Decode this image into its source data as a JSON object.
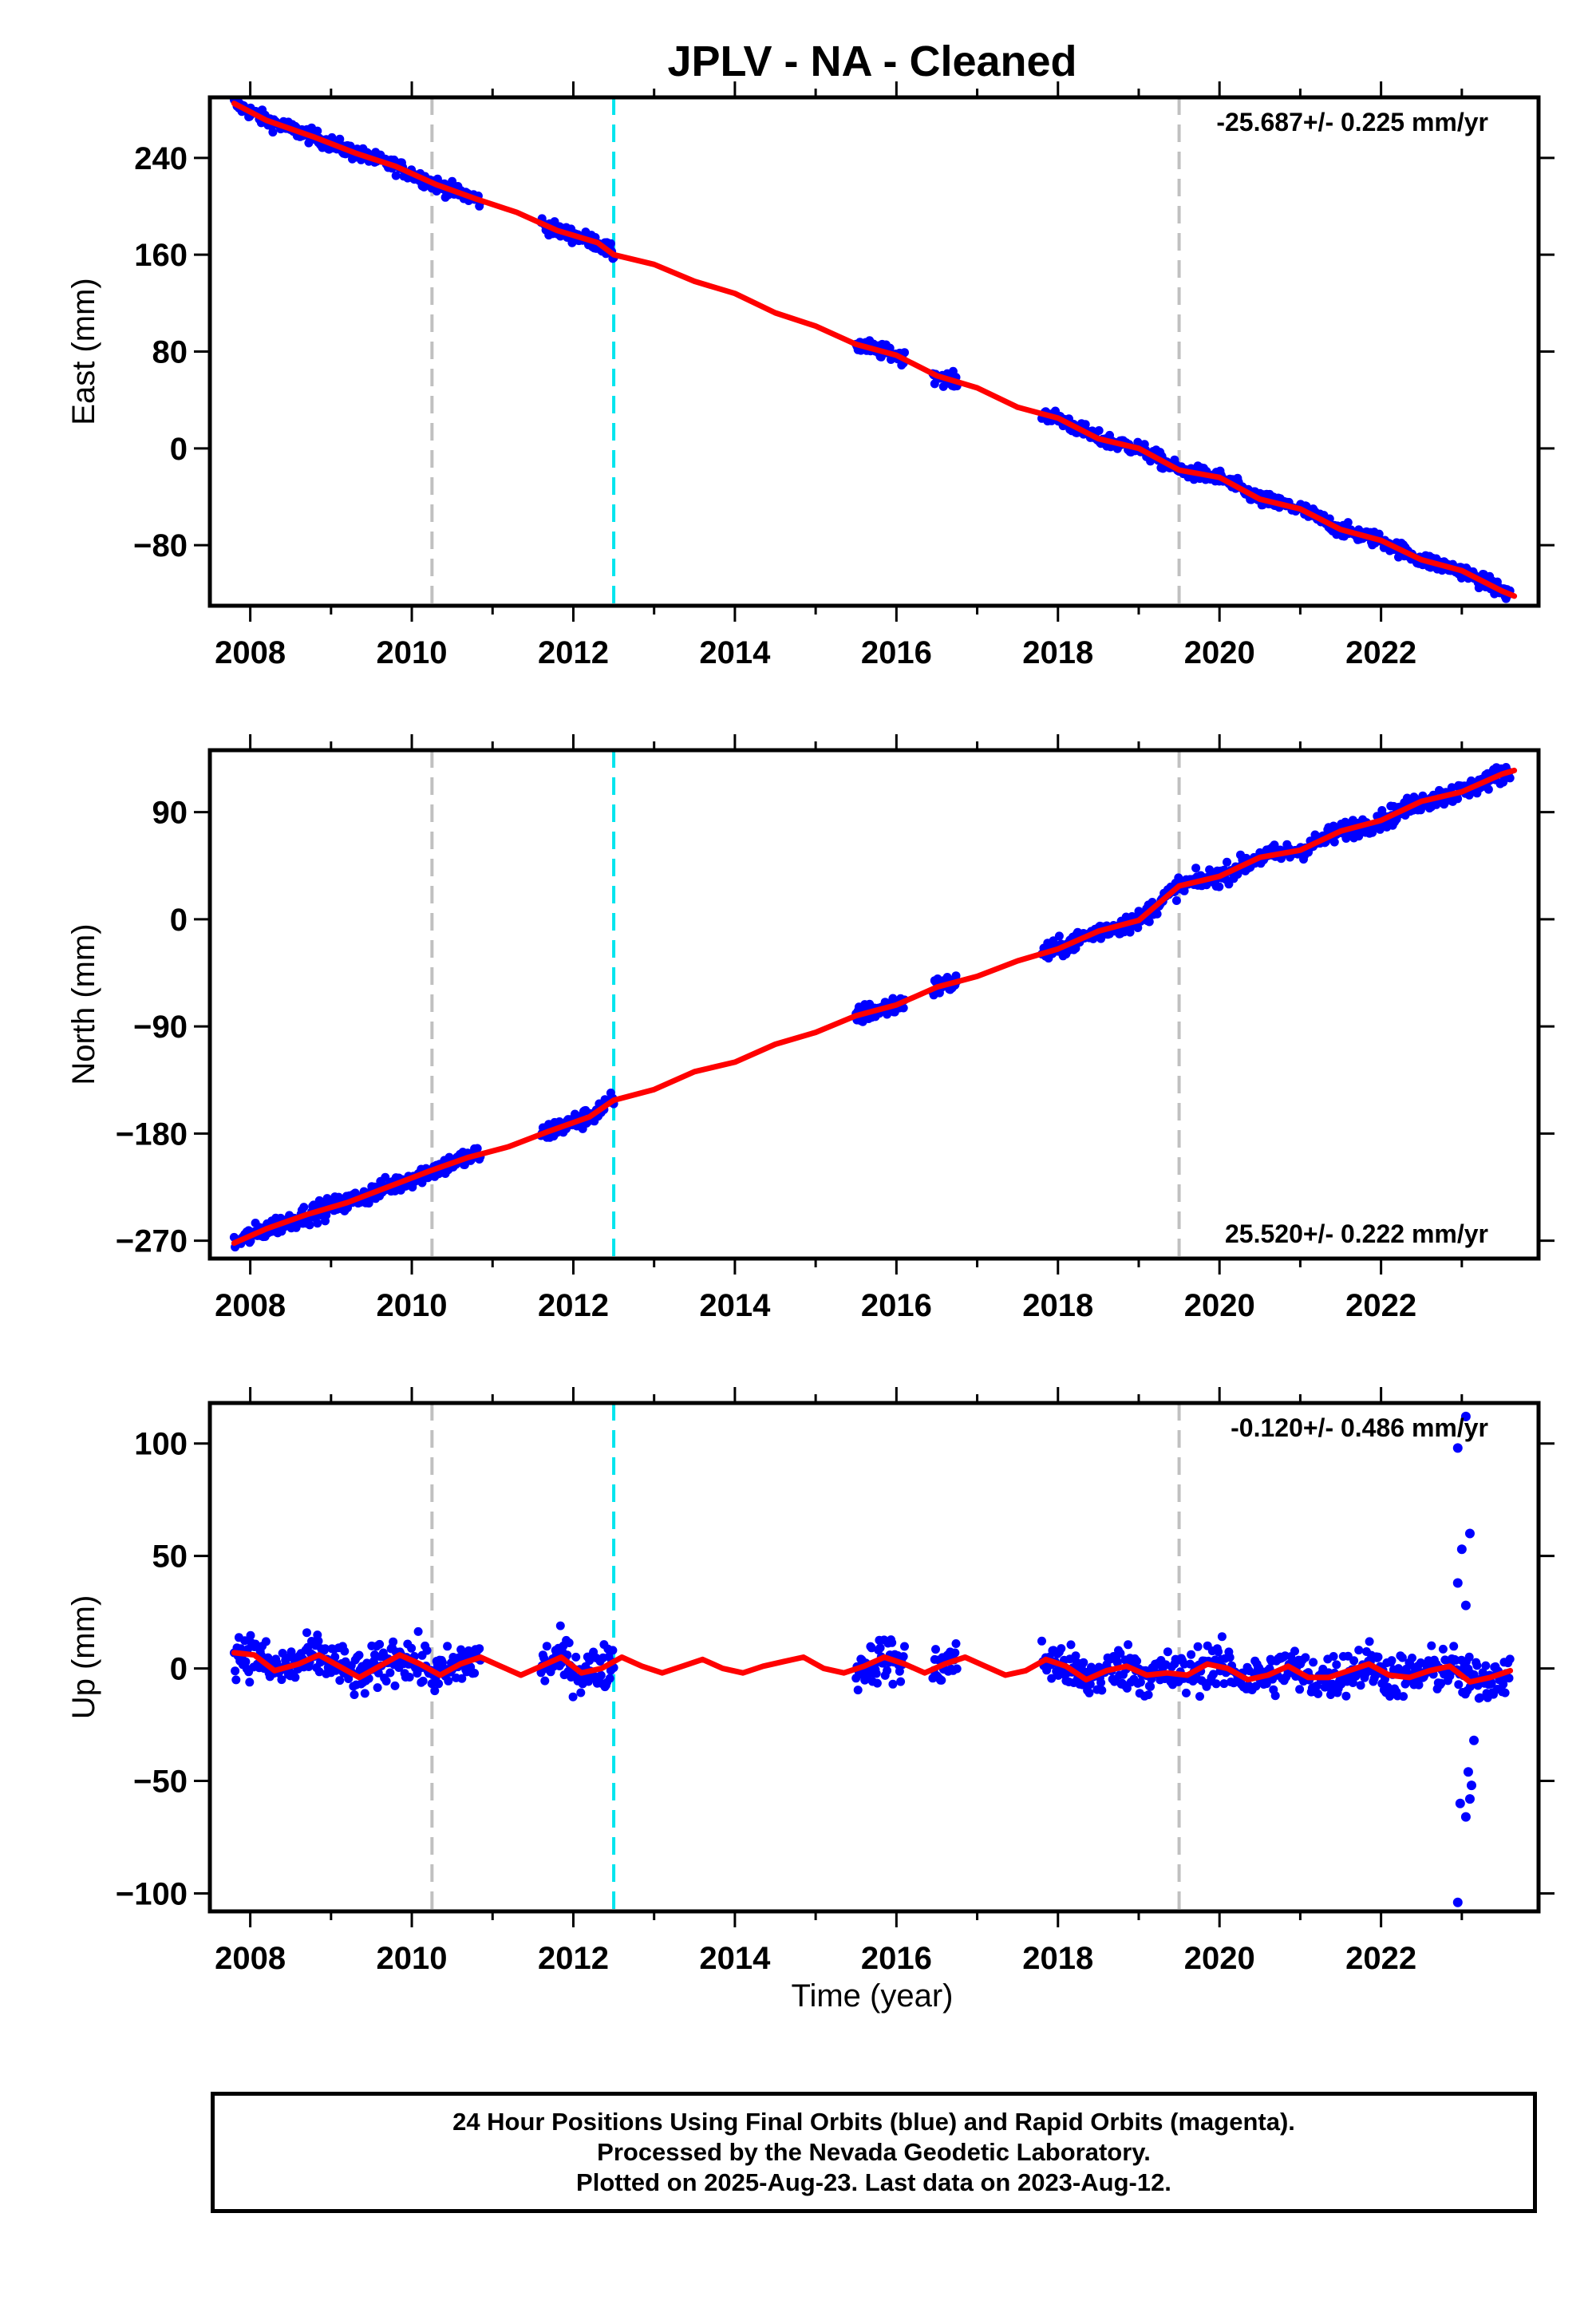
{
  "title": "JPLV  - NA - Cleaned",
  "xlabel": "Time (year)",
  "footer": {
    "line1": "24 Hour Positions Using Final Orbits (blue) and Rapid Orbits (magenta).",
    "line2": "Processed by the Nevada Geodetic Laboratory.",
    "line3": "Plotted on 2025-Aug-23. Last data on 2023-Aug-12."
  },
  "colors": {
    "data": "#0000ff",
    "model": "#ff0000",
    "equipment_change": "#c0c0c0",
    "earthquake": "#00e5ee"
  },
  "chart_data": [
    {
      "type": "scatter",
      "component": "east",
      "ylabel": "East (mm)",
      "rate_text": "-25.687+/- 0.225 mm/yr",
      "xlim": [
        2007.5,
        2023.95
      ],
      "ylim": [
        -130,
        290
      ],
      "yticks": [
        -80,
        0,
        80,
        160,
        240
      ],
      "xticks": [
        2008,
        2010,
        2012,
        2014,
        2016,
        2018,
        2020,
        2022
      ],
      "gray_lines": [
        2010.25,
        2019.5
      ],
      "cyan_lines": [
        2012.5
      ],
      "data_segments": [
        [
          2007.8,
          2010.85
        ],
        [
          2011.6,
          2012.5
        ],
        [
          2015.5,
          2016.1
        ],
        [
          2016.45,
          2016.75
        ],
        [
          2017.8,
          2023.6
        ]
      ],
      "model_points": [
        [
          2007.8,
          285
        ],
        [
          2008.2,
          271
        ],
        [
          2008.8,
          257
        ],
        [
          2009.3,
          244
        ],
        [
          2009.8,
          233
        ],
        [
          2010.3,
          218
        ],
        [
          2010.8,
          206
        ],
        [
          2011.3,
          195
        ],
        [
          2011.8,
          180
        ],
        [
          2012.3,
          170
        ],
        [
          2012.5,
          160
        ],
        [
          2013.0,
          152
        ],
        [
          2013.5,
          138
        ],
        [
          2014.0,
          128
        ],
        [
          2014.5,
          112
        ],
        [
          2015.0,
          101
        ],
        [
          2015.5,
          86
        ],
        [
          2016.0,
          77
        ],
        [
          2016.5,
          60
        ],
        [
          2017.0,
          50
        ],
        [
          2017.5,
          34
        ],
        [
          2018.0,
          25
        ],
        [
          2018.5,
          8
        ],
        [
          2019.0,
          0
        ],
        [
          2019.5,
          -18
        ],
        [
          2020.0,
          -24
        ],
        [
          2020.5,
          -42
        ],
        [
          2021.0,
          -50
        ],
        [
          2021.5,
          -67
        ],
        [
          2022.0,
          -76
        ],
        [
          2022.5,
          -92
        ],
        [
          2023.0,
          -101
        ],
        [
          2023.5,
          -118
        ],
        [
          2023.65,
          -122
        ]
      ]
    },
    {
      "type": "scatter",
      "component": "north",
      "ylabel": "North (mm)",
      "rate_text": "25.520+/- 0.222 mm/yr",
      "xlim": [
        2007.5,
        2023.95
      ],
      "ylim": [
        -285,
        142
      ],
      "yticks": [
        -270,
        -180,
        -90,
        0,
        90
      ],
      "xticks": [
        2008,
        2010,
        2012,
        2014,
        2016,
        2018,
        2020,
        2022
      ],
      "gray_lines": [
        2010.25,
        2019.5
      ],
      "cyan_lines": [
        2012.5
      ],
      "data_segments": [
        [
          2007.8,
          2010.85
        ],
        [
          2011.6,
          2012.5
        ],
        [
          2015.5,
          2016.1
        ],
        [
          2016.45,
          2016.75
        ],
        [
          2017.8,
          2023.6
        ]
      ],
      "model_points": [
        [
          2007.8,
          -272
        ],
        [
          2008.2,
          -260
        ],
        [
          2008.7,
          -248
        ],
        [
          2009.2,
          -238
        ],
        [
          2009.7,
          -225
        ],
        [
          2010.2,
          -212
        ],
        [
          2010.7,
          -200
        ],
        [
          2011.2,
          -191
        ],
        [
          2011.7,
          -178
        ],
        [
          2012.2,
          -166
        ],
        [
          2012.5,
          -152
        ],
        [
          2013.0,
          -143
        ],
        [
          2013.5,
          -128
        ],
        [
          2014.0,
          -120
        ],
        [
          2014.5,
          -105
        ],
        [
          2015.0,
          -95
        ],
        [
          2015.5,
          -81
        ],
        [
          2016.0,
          -72
        ],
        [
          2016.5,
          -57
        ],
        [
          2017.0,
          -48
        ],
        [
          2017.5,
          -35
        ],
        [
          2018.0,
          -25
        ],
        [
          2018.5,
          -10
        ],
        [
          2019.0,
          -1
        ],
        [
          2019.5,
          28
        ],
        [
          2020.0,
          36
        ],
        [
          2020.5,
          52
        ],
        [
          2021.0,
          58
        ],
        [
          2021.5,
          74
        ],
        [
          2022.0,
          83
        ],
        [
          2022.5,
          99
        ],
        [
          2023.0,
          107
        ],
        [
          2023.5,
          122
        ],
        [
          2023.65,
          125
        ]
      ]
    },
    {
      "type": "scatter",
      "component": "up",
      "ylabel": "Up (mm)",
      "rate_text": "-0.120+/- 0.486 mm/yr",
      "xlim": [
        2007.5,
        2023.95
      ],
      "ylim": [
        -108,
        118
      ],
      "yticks": [
        -100,
        -50,
        0,
        50,
        100
      ],
      "xticks": [
        2008,
        2010,
        2012,
        2014,
        2016,
        2018,
        2020,
        2022
      ],
      "gray_lines": [
        2010.25,
        2019.5
      ],
      "cyan_lines": [
        2012.5
      ],
      "data_segments": [
        [
          2007.8,
          2010.85
        ],
        [
          2011.6,
          2012.5
        ],
        [
          2015.5,
          2016.1
        ],
        [
          2016.45,
          2016.75
        ],
        [
          2017.8,
          2023.6
        ]
      ],
      "outliers": [
        [
          2022.95,
          98
        ],
        [
          2023.05,
          112
        ],
        [
          2023.1,
          60
        ],
        [
          2023.0,
          53
        ],
        [
          2022.95,
          38
        ],
        [
          2023.05,
          28
        ],
        [
          2022.98,
          -60
        ],
        [
          2023.05,
          -66
        ],
        [
          2023.12,
          -52
        ],
        [
          2023.08,
          -46
        ],
        [
          2022.95,
          -104
        ],
        [
          2023.15,
          -32
        ],
        [
          2023.1,
          -58
        ]
      ],
      "model_points": [
        [
          2007.8,
          7
        ],
        [
          2008.05,
          6
        ],
        [
          2008.3,
          -1
        ],
        [
          2008.6,
          2
        ],
        [
          2008.85,
          6
        ],
        [
          2009.1,
          1
        ],
        [
          2009.35,
          -4
        ],
        [
          2009.6,
          1
        ],
        [
          2009.85,
          6
        ],
        [
          2010.1,
          2
        ],
        [
          2010.35,
          -3
        ],
        [
          2010.6,
          2
        ],
        [
          2010.85,
          5
        ],
        [
          2011.1,
          1
        ],
        [
          2011.35,
          -3
        ],
        [
          2011.6,
          1
        ],
        [
          2011.85,
          5
        ],
        [
          2012.1,
          -2
        ],
        [
          2012.35,
          0
        ],
        [
          2012.6,
          5
        ],
        [
          2012.85,
          1
        ],
        [
          2013.1,
          -2
        ],
        [
          2013.35,
          1
        ],
        [
          2013.6,
          4
        ],
        [
          2013.85,
          0
        ],
        [
          2014.1,
          -2
        ],
        [
          2014.35,
          1
        ],
        [
          2014.6,
          3
        ],
        [
          2014.85,
          5
        ],
        [
          2015.1,
          0
        ],
        [
          2015.35,
          -2
        ],
        [
          2015.6,
          1
        ],
        [
          2015.85,
          5
        ],
        [
          2016.1,
          2
        ],
        [
          2016.35,
          -2
        ],
        [
          2016.6,
          2
        ],
        [
          2016.85,
          5
        ],
        [
          2017.1,
          1
        ],
        [
          2017.35,
          -3
        ],
        [
          2017.6,
          -1
        ],
        [
          2017.85,
          4
        ],
        [
          2018.1,
          1
        ],
        [
          2018.35,
          -5
        ],
        [
          2018.6,
          -1
        ],
        [
          2018.85,
          1
        ],
        [
          2019.1,
          -3
        ],
        [
          2019.35,
          -2
        ],
        [
          2019.6,
          -3
        ],
        [
          2019.85,
          2
        ],
        [
          2020.1,
          0
        ],
        [
          2020.35,
          -5
        ],
        [
          2020.6,
          -3
        ],
        [
          2020.85,
          1
        ],
        [
          2021.1,
          -4
        ],
        [
          2021.35,
          -4
        ],
        [
          2021.6,
          -1
        ],
        [
          2021.85,
          2
        ],
        [
          2022.1,
          -3
        ],
        [
          2022.35,
          -4
        ],
        [
          2022.6,
          -1
        ],
        [
          2022.85,
          1
        ],
        [
          2023.1,
          -6
        ],
        [
          2023.35,
          -4
        ],
        [
          2023.6,
          -1
        ]
      ]
    }
  ]
}
